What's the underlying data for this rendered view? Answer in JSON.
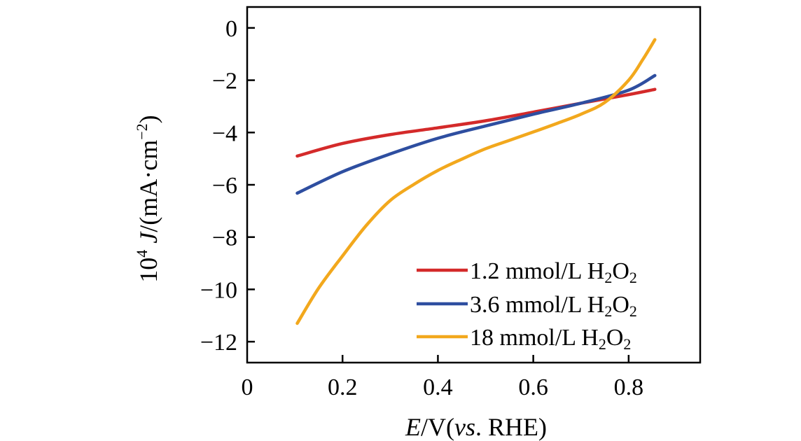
{
  "chart_data": {
    "type": "line",
    "title": "",
    "xlabel": {
      "var": "E",
      "unit": "/V(",
      "ref_italic": "vs",
      "ref_rest": ". RHE)"
    },
    "ylabel": {
      "prefix": "10",
      "prefix_sup": "4",
      "var": "J",
      "unit": "/(mA·cm",
      "unit_sup": "−2",
      "close": ")"
    },
    "xlim": [
      0,
      0.95
    ],
    "ylim": [
      -12.8,
      0.8
    ],
    "xticks": [
      {
        "value": 0,
        "label": "0"
      },
      {
        "value": 0.2,
        "label": "0.2"
      },
      {
        "value": 0.4,
        "label": "0.4"
      },
      {
        "value": 0.6,
        "label": "0.6"
      },
      {
        "value": 0.8,
        "label": "0.8"
      }
    ],
    "yticks": [
      {
        "value": 0,
        "label": "0"
      },
      {
        "value": -2,
        "label": "−2"
      },
      {
        "value": -4,
        "label": "−4"
      },
      {
        "value": -6,
        "label": "−6"
      },
      {
        "value": -8,
        "label": "−8"
      },
      {
        "value": -10,
        "label": "−10"
      },
      {
        "value": -12,
        "label": "−12"
      }
    ],
    "legend_position": "bottom-right",
    "series": [
      {
        "name": "1.2 mmol/L H2O2",
        "label": {
          "main": "1.2 mmol/L H",
          "sub1": "2",
          "mid": "O",
          "sub2": "2"
        },
        "color": "#d42a2a",
        "x": [
          0.105,
          0.2,
          0.3,
          0.4,
          0.5,
          0.6,
          0.7,
          0.8,
          0.855
        ],
        "y": [
          -4.9,
          -4.42,
          -4.08,
          -3.82,
          -3.55,
          -3.22,
          -2.88,
          -2.55,
          -2.35
        ]
      },
      {
        "name": "3.6 mmol/L H2O2",
        "label": {
          "main": "3.6 mmol/L H",
          "sub1": "2",
          "mid": "O",
          "sub2": "2"
        },
        "color": "#2e4ea0",
        "x": [
          0.105,
          0.2,
          0.3,
          0.4,
          0.5,
          0.6,
          0.7,
          0.8,
          0.855
        ],
        "y": [
          -6.32,
          -5.5,
          -4.82,
          -4.22,
          -3.75,
          -3.3,
          -2.88,
          -2.38,
          -1.82
        ]
      },
      {
        "name": "18 mmol/L H2O2",
        "label": {
          "main": "18 mmol/L H",
          "sub1": "2",
          "mid": "O",
          "sub2": "2"
        },
        "color": "#f2a81d",
        "x": [
          0.105,
          0.15,
          0.2,
          0.25,
          0.3,
          0.35,
          0.4,
          0.45,
          0.5,
          0.55,
          0.6,
          0.65,
          0.7,
          0.75,
          0.8,
          0.83,
          0.855
        ],
        "y": [
          -11.3,
          -9.95,
          -8.72,
          -7.55,
          -6.6,
          -5.98,
          -5.45,
          -5.02,
          -4.62,
          -4.3,
          -3.98,
          -3.65,
          -3.3,
          -2.85,
          -2.0,
          -1.2,
          -0.45
        ]
      }
    ]
  }
}
